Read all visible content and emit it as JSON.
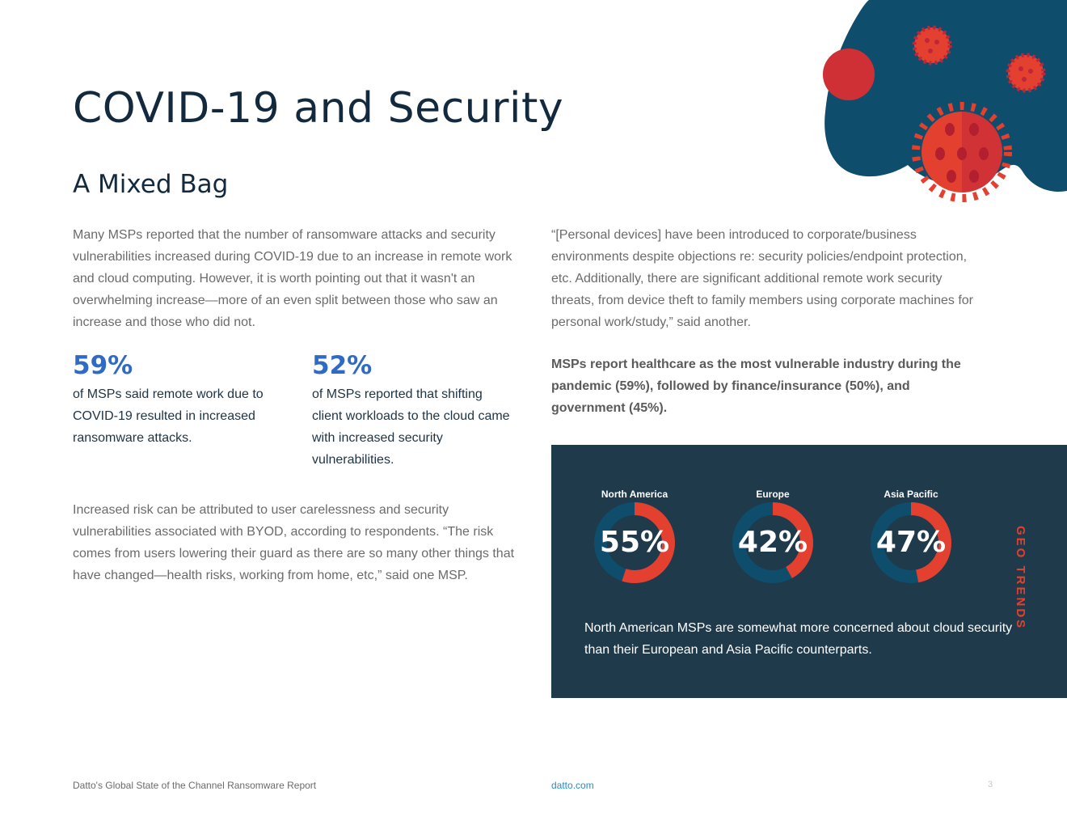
{
  "page": {
    "title": "COVID-19 and Security",
    "subtitle": "A Mixed Bag",
    "intro": "Many MSPs reported that the number of ransomware attacks and security vulnerabilities increased during COVID-19 due to an increase in remote work and cloud computing. However, it is worth pointing out that it wasn't an overwhelming increase—more of an even split between those who saw an increase and those who did not.",
    "risk_paragraph": "Increased risk can be attributed to user carelessness and security vulnerabilities associated with BYOD, according to respondents. “The risk comes from users lowering their guard as there are so many other things that have changed—health risks, working from home, etc,” said one MSP.",
    "quote": "“[Personal devices] have been introduced to corporate/business environments despite objections re: security policies/endpoint protection, etc. Additionally, there are significant additional remote work security threats, from device theft to family members using corporate machines for personal work/study,” said another.",
    "industry_note": "MSPs report healthcare as the most vulnerable industry during the pandemic (59%), followed by finance/insurance (50%), and government (45%)."
  },
  "stats": [
    {
      "value": "59%",
      "description": "of MSPs said remote work due to COVID-19 resulted in increased ransomware attacks."
    },
    {
      "value": "52%",
      "description": "of MSPs reported that shifting client workloads to the cloud came with increased security vulnerabilities."
    }
  ],
  "geo_trends": {
    "label": "GEO TRENDS",
    "note": "North American MSPs are somewhat more concerned about cloud security than their European and Asia Pacific counterparts.",
    "colors": {
      "panel": "#1e3a4b",
      "ring_track": "#0f4d6c",
      "ring_fill": "#e4402f"
    },
    "regions": [
      {
        "name": "North America",
        "percent": 55,
        "label": "55%"
      },
      {
        "name": "Europe",
        "percent": 42,
        "label": "42%"
      },
      {
        "name": "Asia Pacific",
        "percent": 47,
        "label": "47%"
      }
    ]
  },
  "footer": {
    "report_name": "Datto's Global State of the Channel Ransomware Report",
    "link": "datto.com",
    "page_number": "3"
  },
  "decoration": {
    "icon": "virus-icon",
    "blob_color": "#0f4d6c",
    "virus_color": "#e4402f"
  }
}
